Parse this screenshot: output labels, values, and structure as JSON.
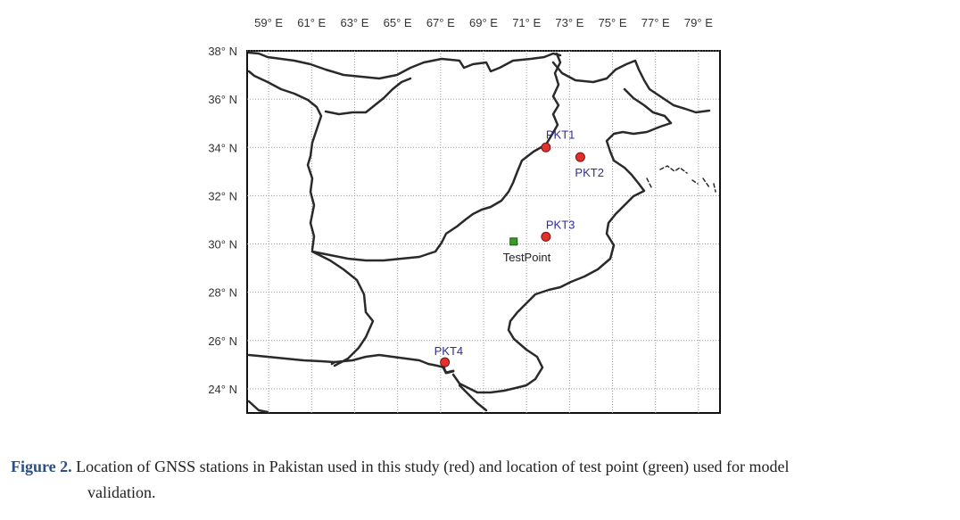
{
  "map": {
    "lon_labels": [
      "59° E",
      "61° E",
      "63° E",
      "65° E",
      "67° E",
      "69° E",
      "71° E",
      "73° E",
      "75° E",
      "77° E",
      "79° E"
    ],
    "lat_labels": [
      "38° N",
      "36° N",
      "34° N",
      "32° N",
      "30° N",
      "28° N",
      "26° N",
      "24° N"
    ],
    "stations": [
      {
        "name": "PKT1",
        "lon": 71.9,
        "lat": 34.0,
        "color": "#e0312b"
      },
      {
        "name": "PKT2",
        "lon": 73.5,
        "lat": 33.6,
        "color": "#e0312b"
      },
      {
        "name": "PKT3",
        "lon": 71.9,
        "lat": 30.3,
        "color": "#e0312b"
      },
      {
        "name": "PKT4",
        "lon": 67.2,
        "lat": 25.1,
        "color": "#e0312b"
      }
    ],
    "test_point": {
      "name": "TestPoint",
      "lon": 70.4,
      "lat": 30.1,
      "color": "#3a9a2a"
    }
  },
  "caption": {
    "label": "Figure 2.",
    "line1": "Location of GNSS stations in Pakistan used in this study (red) and location of test point (green) used for model",
    "line2": "validation."
  }
}
